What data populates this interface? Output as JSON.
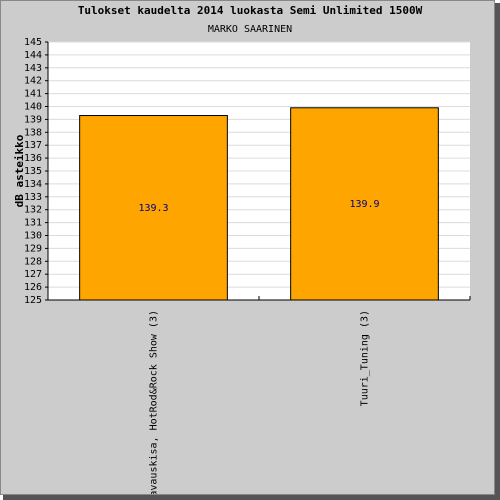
{
  "chart_data": {
    "type": "bar",
    "title": "Tulokset kaudelta 2014 luokasta Semi Unlimited 1500W",
    "subtitle": "MARKO SAARINEN",
    "y_label": "dB asteikko",
    "categories": [
      "avauskisa, HotRod&Rock Show (3)",
      "Tuuri_Tuning (3)"
    ],
    "values": [
      139.3,
      139.9
    ],
    "color": "#ffa500",
    "ylim": [
      125,
      145
    ],
    "yticks": [
      125,
      126,
      127,
      128,
      129,
      130,
      131,
      132,
      133,
      134,
      135,
      136,
      137,
      138,
      139,
      140,
      141,
      142,
      143,
      144,
      145
    ],
    "grid": true
  }
}
